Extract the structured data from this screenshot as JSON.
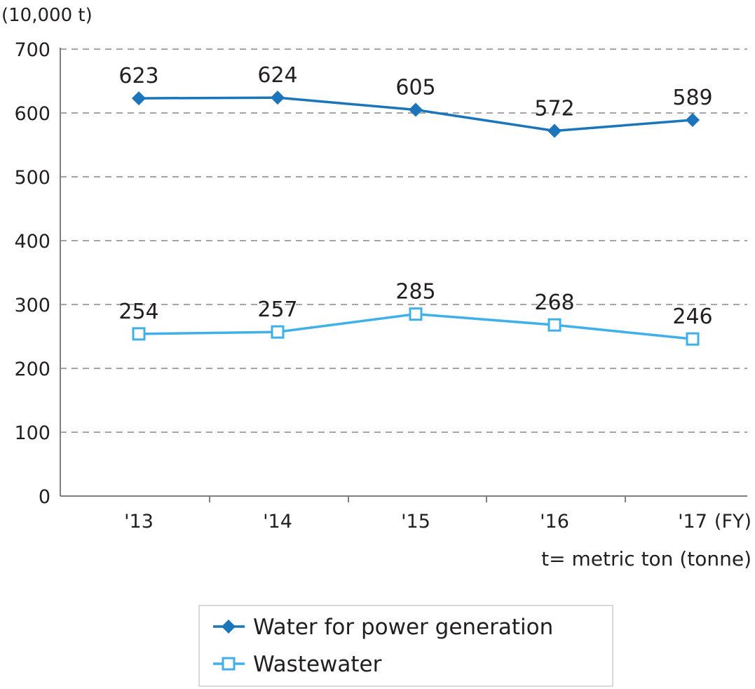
{
  "chart_data": {
    "type": "line",
    "categories": [
      "'13",
      "'14",
      "'15",
      "'16",
      "'17"
    ],
    "series": [
      {
        "name": "Water for power generation",
        "values": [
          623,
          624,
          605,
          572,
          589
        ],
        "color": "#1b75bb",
        "marker": "diamond"
      },
      {
        "name": "Wastewater",
        "values": [
          254,
          257,
          285,
          268,
          246
        ],
        "color": "#3fb0e8",
        "marker": "square"
      }
    ],
    "y_unit": "(10,000 t)",
    "x_unit": "(FY)",
    "note": "t= metric ton (tonne)",
    "ylim": [
      0,
      700
    ],
    "yticks": [
      0,
      100,
      200,
      300,
      400,
      500,
      600,
      700
    ],
    "grid": true,
    "legend_position": "bottom"
  }
}
